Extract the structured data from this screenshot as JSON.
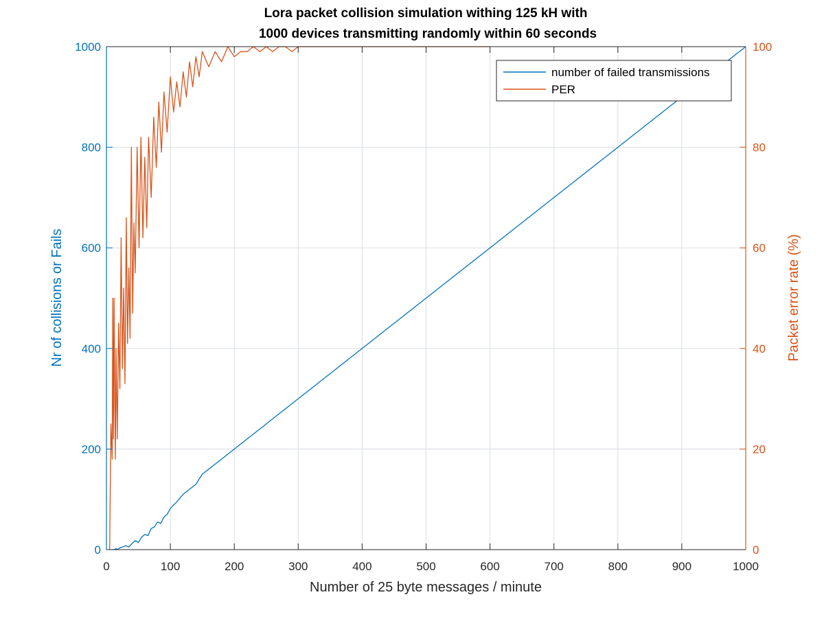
{
  "chart_data": {
    "type": "line",
    "title_lines": [
      "Lora packet collision simulation withing 125 kH with",
      "1000 devices transmitting randomly within 60 seconds"
    ],
    "xlabel": "Number of 25 byte  messages / minute",
    "ylabel_left": "Nr of collisions or Fails",
    "ylabel_right": "Packet error rate (%)",
    "xlim": [
      0,
      1000
    ],
    "ylim_left": [
      0,
      1000
    ],
    "ylim_right": [
      0,
      100
    ],
    "x_ticks": [
      "0",
      "100",
      "200",
      "300",
      "400",
      "500",
      "600",
      "700",
      "800",
      "900",
      "1000"
    ],
    "y_ticks_left": [
      "0",
      "200",
      "400",
      "600",
      "800",
      "1000"
    ],
    "y_ticks_right": [
      "0",
      "20",
      "40",
      "60",
      "80",
      "100"
    ],
    "grid": true,
    "legend_position": "top-right",
    "colors": {
      "left_axis": "#0072BD",
      "right_axis": "#D95319",
      "grid": "#dfe3e8",
      "text": "#262626"
    },
    "series": [
      {
        "name": "number of failed transmissions",
        "axis": "left",
        "color": "#0072BD",
        "x": [
          8,
          12,
          15,
          18,
          20,
          25,
          30,
          35,
          40,
          45,
          50,
          55,
          60,
          65,
          70,
          75,
          80,
          85,
          90,
          95,
          100,
          110,
          120,
          130,
          140,
          150,
          160,
          170,
          180,
          190,
          200,
          225,
          250,
          275,
          300,
          400,
          500,
          600,
          700,
          800,
          900,
          1000
        ],
        "y": [
          0,
          0,
          2,
          0,
          3,
          5,
          8,
          5,
          12,
          18,
          14,
          25,
          30,
          28,
          42,
          45,
          55,
          52,
          65,
          70,
          82,
          95,
          110,
          120,
          130,
          150,
          160,
          170,
          180,
          190,
          200,
          225,
          250,
          275,
          300,
          400,
          500,
          600,
          700,
          800,
          900,
          1000
        ]
      },
      {
        "name": "PER",
        "axis": "right",
        "color": "#D95319",
        "x": [
          5,
          7,
          9,
          10,
          11,
          12,
          13,
          14,
          15,
          17,
          19,
          21,
          23,
          25,
          27,
          29,
          31,
          33,
          35,
          37,
          39,
          41,
          43,
          45,
          48,
          51,
          54,
          57,
          60,
          63,
          66,
          70,
          74,
          78,
          82,
          86,
          90,
          95,
          100,
          105,
          110,
          115,
          120,
          125,
          130,
          135,
          140,
          145,
          150,
          160,
          170,
          180,
          190,
          200,
          210,
          220,
          230,
          240,
          250,
          260,
          270,
          280,
          290,
          300,
          320,
          340,
          360,
          380,
          400,
          450,
          500,
          550,
          600
        ],
        "y": [
          0,
          25,
          18,
          50,
          22,
          50,
          30,
          18,
          40,
          22,
          45,
          32,
          62,
          36,
          52,
          33,
          66,
          41,
          56,
          42,
          80,
          47,
          65,
          55,
          80,
          60,
          82,
          62,
          78,
          64,
          82,
          70,
          86,
          76,
          89,
          79,
          91,
          83,
          94,
          87,
          93,
          88,
          95,
          90,
          97,
          92,
          98,
          94,
          99,
          96,
          99,
          97,
          100,
          98,
          99,
          99,
          100,
          99,
          100,
          99,
          100,
          100,
          99,
          100,
          100,
          100,
          100,
          100,
          100,
          100,
          100,
          100,
          100
        ]
      }
    ]
  }
}
